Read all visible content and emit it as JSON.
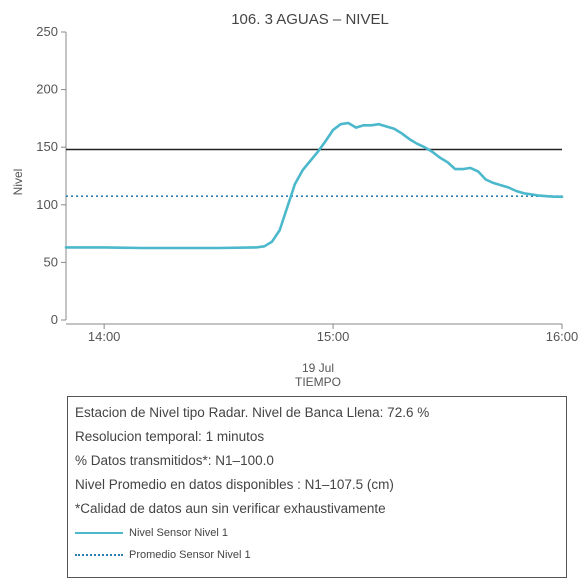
{
  "chart_data": {
    "type": "line",
    "title": "106. 3 AGUAS – NIVEL",
    "ylabel": "Nivel",
    "xlabel_date": "19 Jul",
    "xlabel": "TIEMPO",
    "ylim": [
      0,
      250
    ],
    "yticks": [
      0,
      50,
      100,
      150,
      200,
      250
    ],
    "xlim": [
      "13:50",
      "16:00"
    ],
    "xticks": [
      "14:00",
      "15:00",
      "16:00"
    ],
    "reference_lines": [
      {
        "name": "Banca Llena",
        "y": 148,
        "color": "#222222",
        "style": "solid"
      },
      {
        "name": "Promedio Sensor Nivel 1",
        "y": 107.5,
        "color": "#2a7fb0",
        "style": "dotted"
      }
    ],
    "series": [
      {
        "name": "Nivel Sensor Nivel 1",
        "color": "#4bb8cc",
        "x": [
          "13:50",
          "14:00",
          "14:10",
          "14:20",
          "14:30",
          "14:40",
          "14:42",
          "14:44",
          "14:46",
          "14:48",
          "14:50",
          "14:52",
          "14:54",
          "14:56",
          "14:58",
          "15:00",
          "15:02",
          "15:04",
          "15:06",
          "15:08",
          "15:10",
          "15:12",
          "15:14",
          "15:16",
          "15:18",
          "15:20",
          "15:22",
          "15:24",
          "15:26",
          "15:28",
          "15:30",
          "15:32",
          "15:34",
          "15:36",
          "15:38",
          "15:40",
          "15:42",
          "15:44",
          "15:46",
          "15:48",
          "15:50",
          "15:52",
          "15:54",
          "15:56",
          "15:58",
          "16:00"
        ],
        "y": [
          63,
          63,
          62.5,
          62.5,
          62.5,
          63,
          64,
          68,
          78,
          98,
          118,
          130,
          138,
          146,
          155,
          165,
          170,
          171,
          167,
          169,
          169,
          170,
          168,
          166,
          162,
          157,
          153,
          150,
          146,
          141,
          137,
          131,
          131,
          132,
          129,
          122,
          119,
          117,
          115,
          112,
          110,
          109,
          108,
          107.5,
          107,
          107
        ]
      }
    ]
  },
  "info": {
    "lines": [
      "Estacion de Nivel tipo Radar. Nivel de Banca Llena: 72.6 %",
      "Resolucion temporal: 1 minutos",
      "% Datos transmitidos*: N1–100.0",
      "Nivel Promedio en datos disponibles : N1–107.5 (cm)",
      "*Calidad de datos aun sin verificar exhaustivamente"
    ],
    "legend": [
      {
        "label": "Nivel Sensor Nivel 1",
        "color": "#4bb8cc",
        "style": "solid"
      },
      {
        "label": "Promedio Sensor Nivel 1",
        "color": "#2a7fb0",
        "style": "dotted"
      }
    ]
  }
}
